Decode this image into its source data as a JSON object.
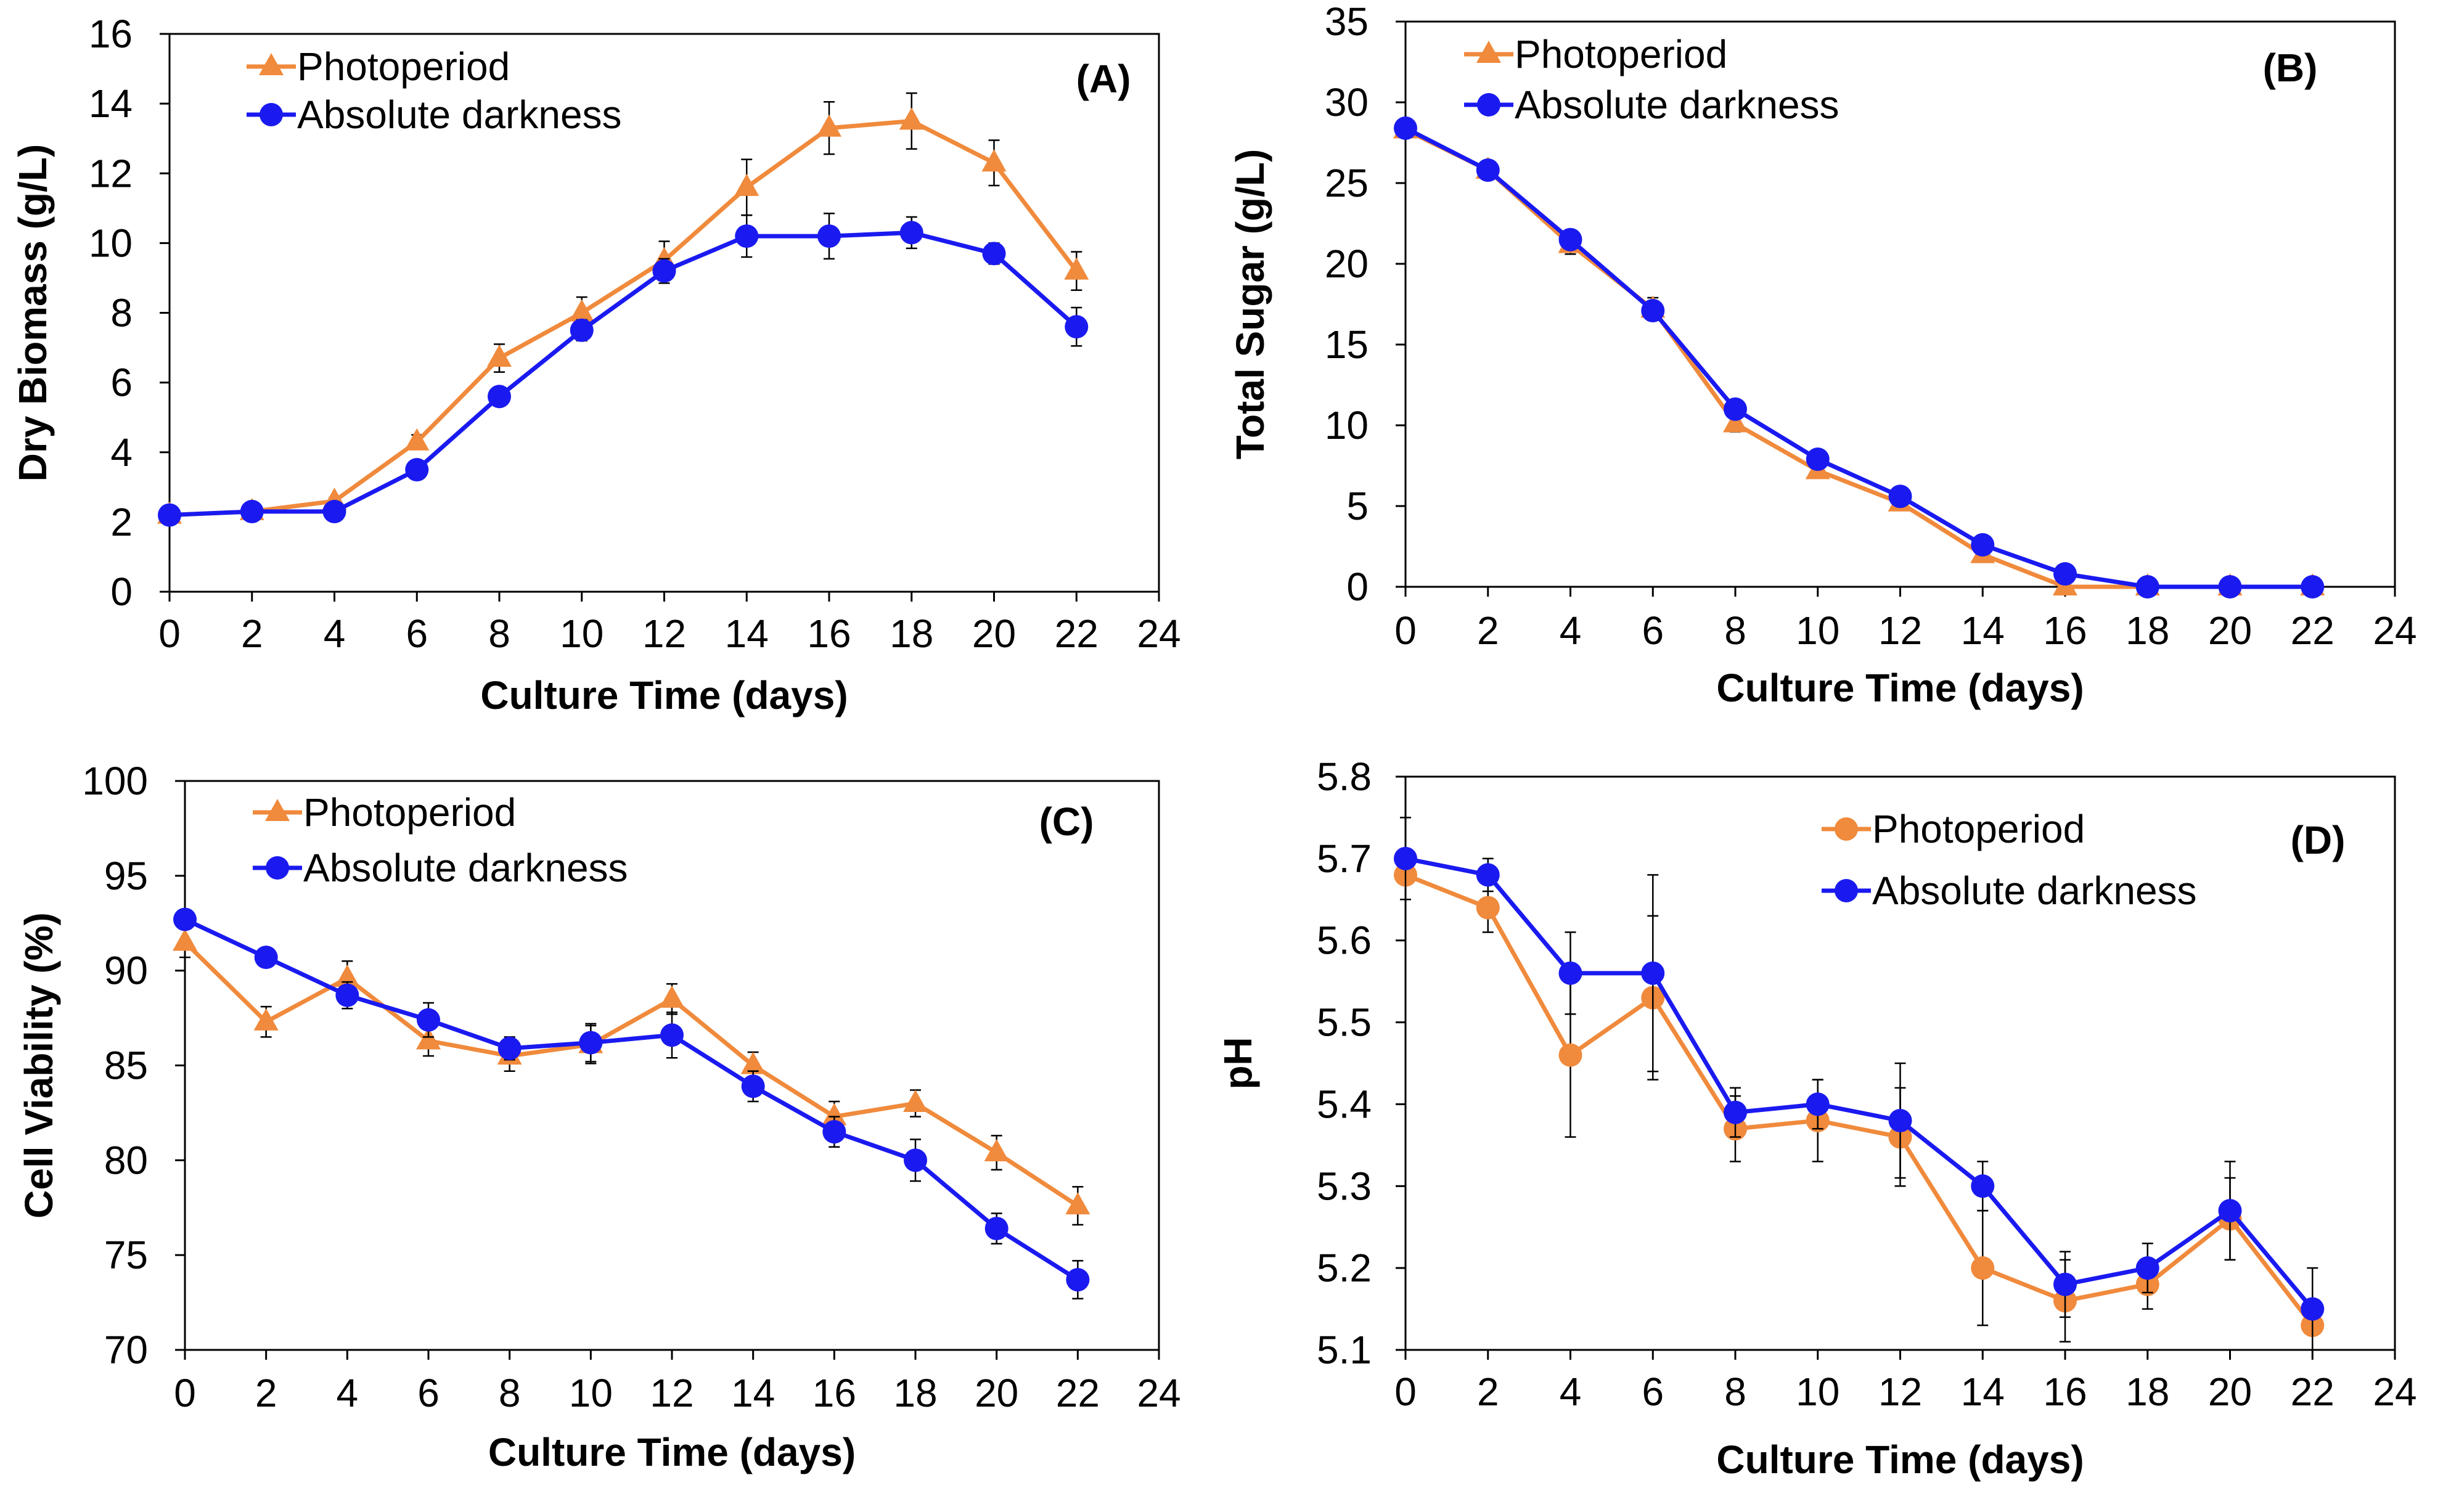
{
  "chart_data": [
    {
      "panel": "A",
      "type": "line",
      "label": "(A)",
      "xlabel": "Culture Time (days)",
      "ylabel": "Dry Biomass (g/L)",
      "xlim": [
        0,
        24
      ],
      "ylim": [
        0,
        16
      ],
      "xticks": [
        "0",
        "2",
        "4",
        "6",
        "8",
        "10",
        "12",
        "14",
        "16",
        "18",
        "20",
        "22",
        "24"
      ],
      "yticks": [
        "0",
        "2",
        "4",
        "6",
        "8",
        "10",
        "12",
        "14",
        "16"
      ],
      "legend_position": "top-left",
      "x": [
        0,
        2,
        4,
        6,
        8,
        10,
        12,
        14,
        16,
        18,
        20,
        22
      ],
      "series": [
        {
          "name": "Photoperiod",
          "color": "#F08A3C",
          "marker": "triangle",
          "values": [
            2.2,
            2.3,
            2.6,
            4.3,
            6.7,
            8.0,
            9.5,
            11.6,
            13.3,
            13.5,
            12.3,
            9.2
          ],
          "errors": [
            0.1,
            0.1,
            0.1,
            0.2,
            0.4,
            0.45,
            0.55,
            0.8,
            0.75,
            0.8,
            0.65,
            0.55
          ]
        },
        {
          "name": "Absolute darkness",
          "color": "#1A1AF0",
          "marker": "circle",
          "values": [
            2.2,
            2.3,
            2.3,
            3.5,
            5.6,
            7.5,
            9.2,
            10.2,
            10.2,
            10.3,
            9.7,
            7.6
          ],
          "errors": [
            0.1,
            0.1,
            0.1,
            0.15,
            0.25,
            0.3,
            0.35,
            0.6,
            0.65,
            0.45,
            0.3,
            0.55
          ]
        }
      ]
    },
    {
      "panel": "B",
      "type": "line",
      "label": "(B)",
      "xlabel": "Culture Time (days)",
      "ylabel": "Total Sugar (g/L)",
      "xlim": [
        0,
        24
      ],
      "ylim": [
        0,
        35
      ],
      "xticks": [
        "0",
        "2",
        "4",
        "6",
        "8",
        "10",
        "12",
        "14",
        "16",
        "18",
        "20",
        "22",
        "24"
      ],
      "yticks": [
        "0",
        "5",
        "10",
        "15",
        "20",
        "25",
        "30",
        "35"
      ],
      "legend_position": "top-left",
      "x": [
        0,
        2,
        4,
        6,
        8,
        10,
        12,
        14,
        16,
        18,
        20,
        22
      ],
      "series": [
        {
          "name": "Photoperiod",
          "color": "#F08A3C",
          "marker": "triangle",
          "values": [
            28.3,
            25.8,
            21.2,
            17.2,
            10.1,
            7.2,
            5.2,
            2.0,
            0.0,
            0.0,
            0.0,
            0.0
          ],
          "errors": [
            0.3,
            0.3,
            0.6,
            0.7,
            0.5,
            0.4,
            0.4,
            0.3,
            0.1,
            0.1,
            0.1,
            0.1
          ]
        },
        {
          "name": "Absolute darkness",
          "color": "#1A1AF0",
          "marker": "circle",
          "values": [
            28.4,
            25.8,
            21.5,
            17.1,
            11.0,
            7.9,
            5.6,
            2.6,
            0.8,
            0.0,
            0.0,
            0.0
          ],
          "errors": [
            0.3,
            0.3,
            0.5,
            0.6,
            0.4,
            0.4,
            0.3,
            0.3,
            0.2,
            0.1,
            0.1,
            0.1
          ]
        }
      ]
    },
    {
      "panel": "C",
      "type": "line",
      "label": "(C)",
      "xlabel": "Culture Time (days)",
      "ylabel": "Cell Viability (%)",
      "xlim": [
        0,
        24
      ],
      "ylim": [
        70,
        100
      ],
      "xticks": [
        "0",
        "2",
        "4",
        "6",
        "8",
        "10",
        "12",
        "14",
        "16",
        "18",
        "20",
        "22",
        "24"
      ],
      "yticks": [
        "70",
        "75",
        "80",
        "85",
        "90",
        "95",
        "100"
      ],
      "legend_position": "top-left",
      "x": [
        0,
        2,
        4,
        6,
        8,
        10,
        12,
        14,
        16,
        18,
        20,
        22
      ],
      "series": [
        {
          "name": "Photoperiod",
          "color": "#F08A3C",
          "marker": "triangle",
          "values": [
            91.5,
            87.3,
            89.6,
            86.3,
            85.5,
            86.1,
            88.5,
            85.0,
            82.3,
            83.0,
            80.4,
            77.6
          ],
          "errors": [
            0.8,
            0.8,
            0.9,
            0.8,
            0.8,
            1.0,
            0.8,
            0.7,
            0.8,
            0.7,
            0.9,
            1.0
          ]
        },
        {
          "name": "Absolute darkness",
          "color": "#1A1AF0",
          "marker": "circle",
          "values": [
            92.7,
            90.7,
            88.7,
            87.4,
            85.9,
            86.2,
            86.6,
            83.9,
            81.5,
            80.0,
            76.4,
            73.7
          ],
          "errors": [
            0.5,
            0.5,
            0.7,
            0.9,
            0.6,
            1.0,
            1.2,
            0.8,
            0.8,
            1.1,
            0.8,
            1.0
          ]
        }
      ]
    },
    {
      "panel": "D",
      "type": "line",
      "label": "(D)",
      "xlabel": "Culture Time (days)",
      "ylabel": "pH",
      "xlim": [
        0,
        24
      ],
      "ylim": [
        5.1,
        5.8
      ],
      "xticks": [
        "0",
        "2",
        "4",
        "6",
        "8",
        "10",
        "12",
        "14",
        "16",
        "18",
        "20",
        "22",
        "24"
      ],
      "yticks": [
        "5.1",
        "5.2",
        "5.3",
        "5.4",
        "5.5",
        "5.6",
        "5.7",
        "5.8"
      ],
      "legend_position": "top-right",
      "x": [
        0,
        2,
        4,
        6,
        8,
        10,
        12,
        14,
        16,
        18,
        20,
        22
      ],
      "series": [
        {
          "name": "Photoperiod",
          "color": "#F08A3C",
          "marker": "circle",
          "values": [
            5.68,
            5.64,
            5.46,
            5.53,
            5.37,
            5.38,
            5.36,
            5.2,
            5.16,
            5.18,
            5.26,
            5.13
          ],
          "errors": [
            0.03,
            0.03,
            0.1,
            0.1,
            0.04,
            0.05,
            0.06,
            0.07,
            0.05,
            0.03,
            0.05,
            0.03
          ]
        },
        {
          "name": "Absolute darkness",
          "color": "#1A1AF0",
          "marker": "circle",
          "values": [
            5.7,
            5.68,
            5.56,
            5.56,
            5.39,
            5.4,
            5.38,
            5.3,
            5.18,
            5.2,
            5.27,
            5.15
          ],
          "errors": [
            0.05,
            0.02,
            0.05,
            0.12,
            0.03,
            0.03,
            0.07,
            0.03,
            0.04,
            0.03,
            0.06,
            0.05
          ]
        }
      ]
    }
  ]
}
